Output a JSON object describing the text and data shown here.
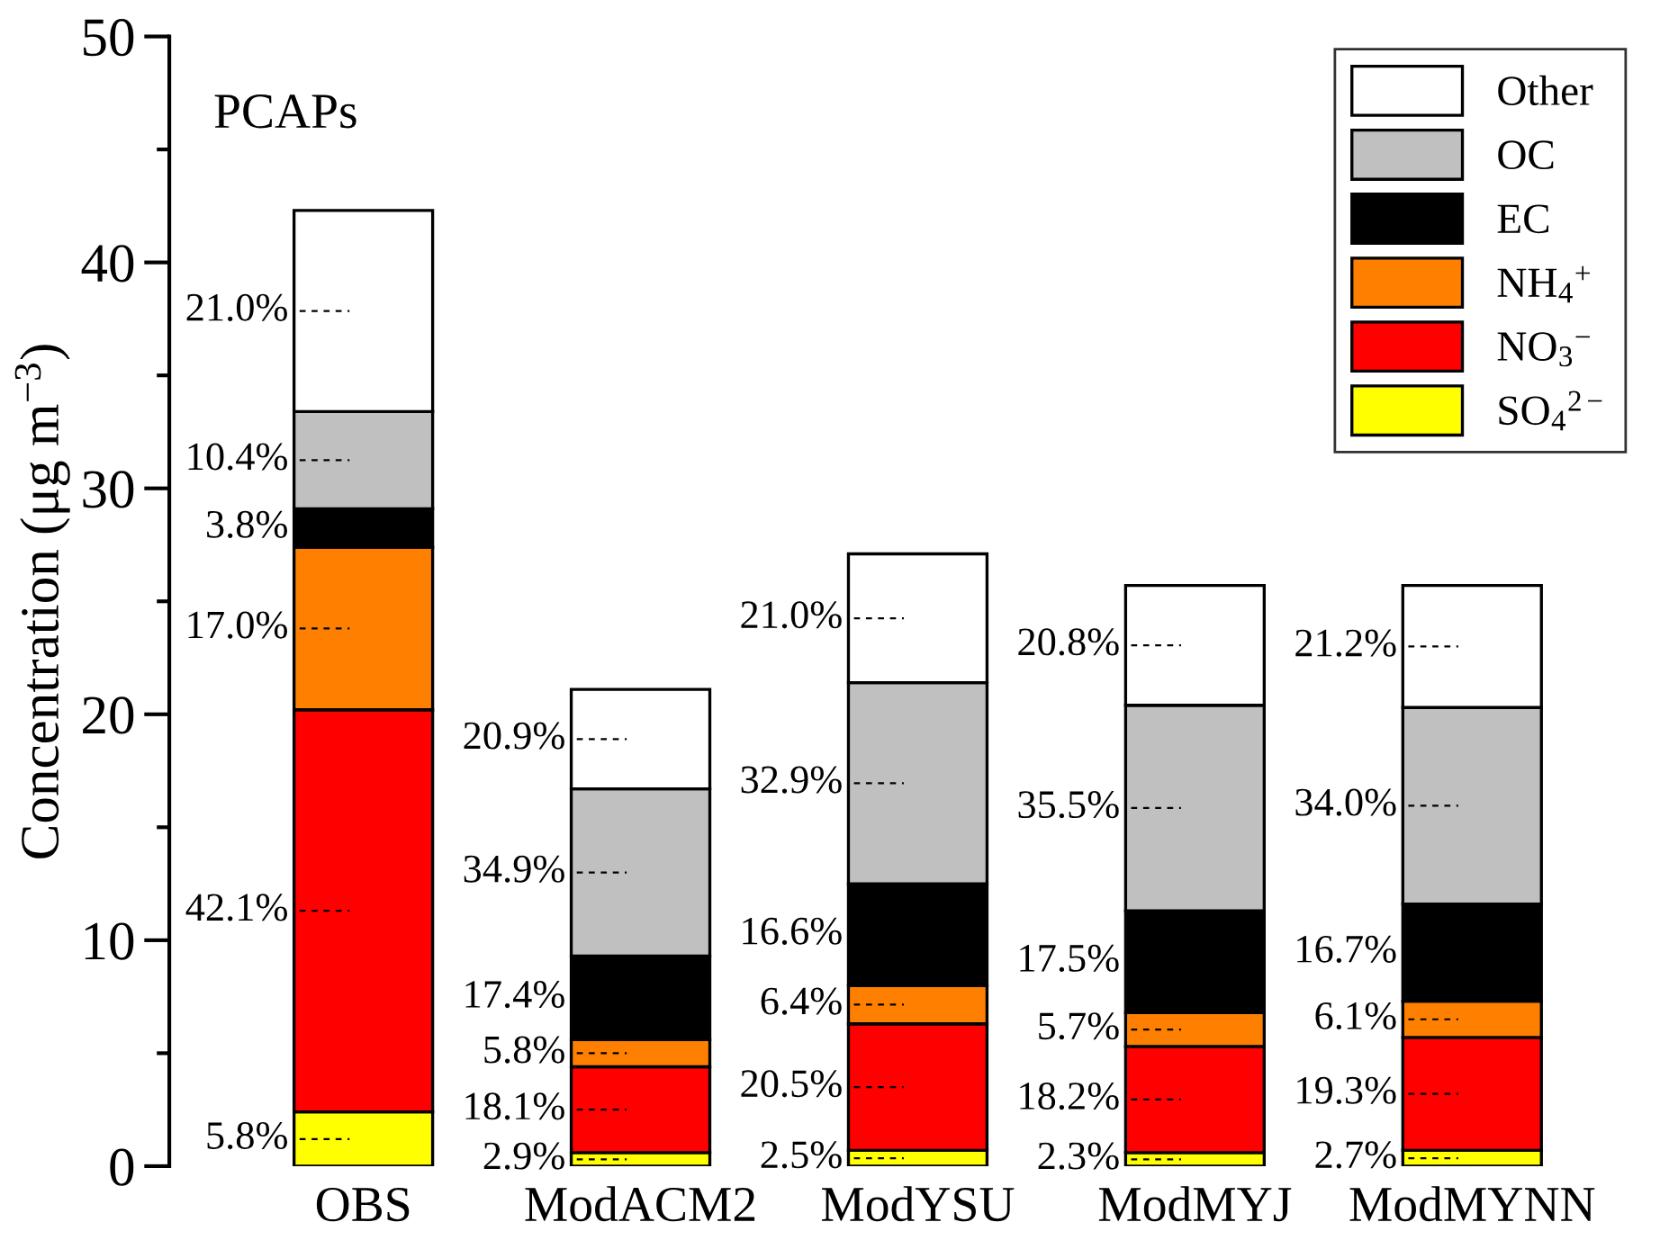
{
  "chart_data": {
    "type": "bar",
    "stacked": true,
    "ylabel": "Concentration (μg m$^{−3}$)",
    "categories": [
      "OBS",
      "ModACM2",
      "ModYSU",
      "ModMYJ",
      "ModMYNN"
    ],
    "ylim": [
      0,
      50
    ],
    "yticks": [
      0,
      10,
      20,
      30,
      40,
      50
    ],
    "grid": false,
    "legend": "top right",
    "series": [
      {
        "name": "SO$_{4}$$^{2−}$",
        "color": "#ffff00",
        "values": [
          2.4,
          0.6,
          0.7,
          0.6,
          0.7
        ]
      },
      {
        "name": "NO$_{3}$$^{−}$",
        "color": "#ff0000",
        "values": [
          17.8,
          3.8,
          5.6,
          4.7,
          5.0
        ]
      },
      {
        "name": "NH$_{4}$$^{+}$",
        "color": "#ff8000",
        "values": [
          7.2,
          1.2,
          1.7,
          1.5,
          1.6
        ]
      },
      {
        "name": "EC",
        "color": "#000000",
        "values": [
          1.7,
          3.7,
          4.5,
          4.5,
          4.3
        ]
      },
      {
        "name": "OC",
        "color": "#c0c0c0",
        "values": [
          4.3,
          7.4,
          8.9,
          9.1,
          8.7
        ]
      },
      {
        "name": "Other",
        "color": "#ffffff",
        "values": [
          8.9,
          4.4,
          5.7,
          5.3,
          5.4
        ]
      }
    ],
    "annotations": [
      "PCAPs",
      "5.8%",
      "42.1%",
      "17.0%",
      "3.8%",
      "10.4%",
      "21.0%",
      "2.9%",
      "18.1%",
      "5.8%",
      "17.4%",
      "34.9%",
      "20.9%",
      "2.5%",
      "20.5%",
      "6.4%",
      "16.6%",
      "32.9%",
      "21.0%",
      "2.3%",
      "18.2%",
      "5.7%",
      "17.5%",
      "35.5%",
      "20.8%",
      "2.7%",
      "19.3%",
      "6.1%",
      "16.7%",
      "34.0%",
      "21.2%"
    ]
  }
}
